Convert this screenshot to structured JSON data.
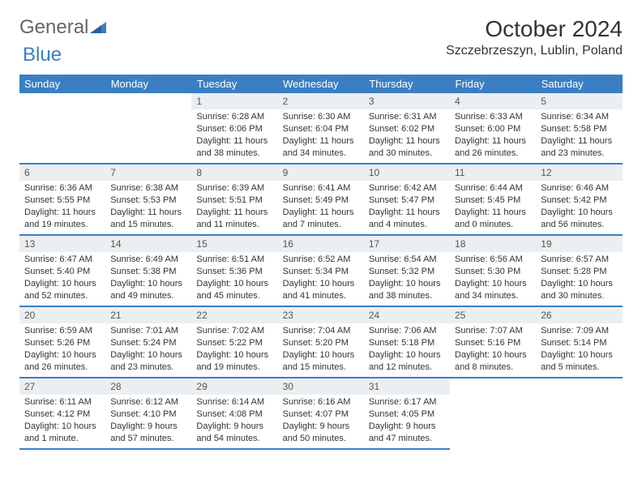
{
  "brand": {
    "part1": "General",
    "part2": "Blue"
  },
  "title": "October 2024",
  "location": "Szczebrzeszyn, Lublin, Poland",
  "colors": {
    "header_bg": "#3a7fc4",
    "header_text": "#ffffff",
    "daynum_bg": "#eceff1",
    "border": "#3a7fc4",
    "text": "#333333",
    "background": "#ffffff"
  },
  "fonts": {
    "title_size": 28,
    "location_size": 16,
    "dayhead_size": 13,
    "cell_size": 11
  },
  "day_headers": [
    "Sunday",
    "Monday",
    "Tuesday",
    "Wednesday",
    "Thursday",
    "Friday",
    "Saturday"
  ],
  "weeks": [
    [
      null,
      null,
      {
        "n": "1",
        "sunrise": "6:28 AM",
        "sunset": "6:06 PM",
        "daylight": "11 hours and 38 minutes."
      },
      {
        "n": "2",
        "sunrise": "6:30 AM",
        "sunset": "6:04 PM",
        "daylight": "11 hours and 34 minutes."
      },
      {
        "n": "3",
        "sunrise": "6:31 AM",
        "sunset": "6:02 PM",
        "daylight": "11 hours and 30 minutes."
      },
      {
        "n": "4",
        "sunrise": "6:33 AM",
        "sunset": "6:00 PM",
        "daylight": "11 hours and 26 minutes."
      },
      {
        "n": "5",
        "sunrise": "6:34 AM",
        "sunset": "5:58 PM",
        "daylight": "11 hours and 23 minutes."
      }
    ],
    [
      {
        "n": "6",
        "sunrise": "6:36 AM",
        "sunset": "5:55 PM",
        "daylight": "11 hours and 19 minutes."
      },
      {
        "n": "7",
        "sunrise": "6:38 AM",
        "sunset": "5:53 PM",
        "daylight": "11 hours and 15 minutes."
      },
      {
        "n": "8",
        "sunrise": "6:39 AM",
        "sunset": "5:51 PM",
        "daylight": "11 hours and 11 minutes."
      },
      {
        "n": "9",
        "sunrise": "6:41 AM",
        "sunset": "5:49 PM",
        "daylight": "11 hours and 7 minutes."
      },
      {
        "n": "10",
        "sunrise": "6:42 AM",
        "sunset": "5:47 PM",
        "daylight": "11 hours and 4 minutes."
      },
      {
        "n": "11",
        "sunrise": "6:44 AM",
        "sunset": "5:45 PM",
        "daylight": "11 hours and 0 minutes."
      },
      {
        "n": "12",
        "sunrise": "6:46 AM",
        "sunset": "5:42 PM",
        "daylight": "10 hours and 56 minutes."
      }
    ],
    [
      {
        "n": "13",
        "sunrise": "6:47 AM",
        "sunset": "5:40 PM",
        "daylight": "10 hours and 52 minutes."
      },
      {
        "n": "14",
        "sunrise": "6:49 AM",
        "sunset": "5:38 PM",
        "daylight": "10 hours and 49 minutes."
      },
      {
        "n": "15",
        "sunrise": "6:51 AM",
        "sunset": "5:36 PM",
        "daylight": "10 hours and 45 minutes."
      },
      {
        "n": "16",
        "sunrise": "6:52 AM",
        "sunset": "5:34 PM",
        "daylight": "10 hours and 41 minutes."
      },
      {
        "n": "17",
        "sunrise": "6:54 AM",
        "sunset": "5:32 PM",
        "daylight": "10 hours and 38 minutes."
      },
      {
        "n": "18",
        "sunrise": "6:56 AM",
        "sunset": "5:30 PM",
        "daylight": "10 hours and 34 minutes."
      },
      {
        "n": "19",
        "sunrise": "6:57 AM",
        "sunset": "5:28 PM",
        "daylight": "10 hours and 30 minutes."
      }
    ],
    [
      {
        "n": "20",
        "sunrise": "6:59 AM",
        "sunset": "5:26 PM",
        "daylight": "10 hours and 26 minutes."
      },
      {
        "n": "21",
        "sunrise": "7:01 AM",
        "sunset": "5:24 PM",
        "daylight": "10 hours and 23 minutes."
      },
      {
        "n": "22",
        "sunrise": "7:02 AM",
        "sunset": "5:22 PM",
        "daylight": "10 hours and 19 minutes."
      },
      {
        "n": "23",
        "sunrise": "7:04 AM",
        "sunset": "5:20 PM",
        "daylight": "10 hours and 15 minutes."
      },
      {
        "n": "24",
        "sunrise": "7:06 AM",
        "sunset": "5:18 PM",
        "daylight": "10 hours and 12 minutes."
      },
      {
        "n": "25",
        "sunrise": "7:07 AM",
        "sunset": "5:16 PM",
        "daylight": "10 hours and 8 minutes."
      },
      {
        "n": "26",
        "sunrise": "7:09 AM",
        "sunset": "5:14 PM",
        "daylight": "10 hours and 5 minutes."
      }
    ],
    [
      {
        "n": "27",
        "sunrise": "6:11 AM",
        "sunset": "4:12 PM",
        "daylight": "10 hours and 1 minute."
      },
      {
        "n": "28",
        "sunrise": "6:12 AM",
        "sunset": "4:10 PM",
        "daylight": "9 hours and 57 minutes."
      },
      {
        "n": "29",
        "sunrise": "6:14 AM",
        "sunset": "4:08 PM",
        "daylight": "9 hours and 54 minutes."
      },
      {
        "n": "30",
        "sunrise": "6:16 AM",
        "sunset": "4:07 PM",
        "daylight": "9 hours and 50 minutes."
      },
      {
        "n": "31",
        "sunrise": "6:17 AM",
        "sunset": "4:05 PM",
        "daylight": "9 hours and 47 minutes."
      },
      null,
      null
    ]
  ],
  "labels": {
    "sunrise_prefix": "Sunrise: ",
    "sunset_prefix": "Sunset: ",
    "daylight_prefix": "Daylight: "
  }
}
